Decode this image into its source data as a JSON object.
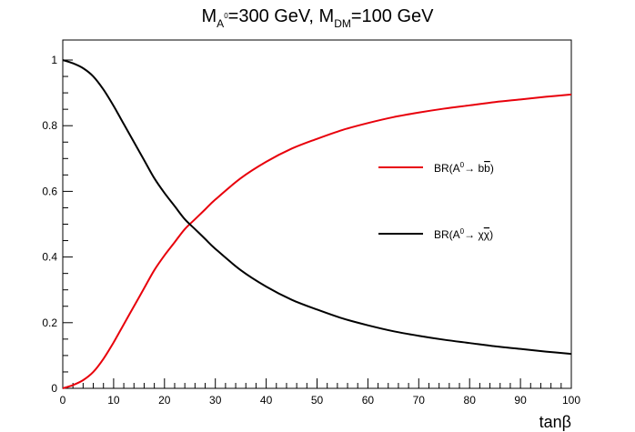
{
  "chart_data": {
    "type": "line",
    "title": {
      "m": "M",
      "a_sub": "A",
      "a_sup": "0",
      "mid": "=300 GeV, M",
      "dm_sub": "DM",
      "tail": "=100 GeV"
    },
    "xlabel": "tanβ",
    "ylabel": "",
    "xlim": [
      0,
      100
    ],
    "ylim": [
      0,
      1
    ],
    "x_ticks": [
      "0",
      "10",
      "20",
      "30",
      "40",
      "50",
      "60",
      "70",
      "80",
      "90",
      "100"
    ],
    "y_ticks": [
      "0",
      "0.2",
      "0.4",
      "0.6",
      "0.8",
      "1"
    ],
    "legend_placement": "right",
    "x": [
      0,
      2,
      4,
      6,
      8,
      10,
      12,
      14,
      16,
      18,
      20,
      22,
      24,
      26,
      28,
      30,
      35,
      40,
      45,
      50,
      55,
      60,
      65,
      70,
      75,
      80,
      85,
      90,
      95,
      100
    ],
    "series": [
      {
        "legend": {
          "pre": "BR(A",
          "sup": "0",
          "arrow": "→",
          "post": " b",
          "bar": "b",
          "close": ")"
        },
        "color": "#e8000b",
        "values": [
          0.0,
          0.01,
          0.025,
          0.05,
          0.09,
          0.14,
          0.195,
          0.25,
          0.305,
          0.36,
          0.405,
          0.445,
          0.485,
          0.515,
          0.545,
          0.575,
          0.64,
          0.69,
          0.73,
          0.76,
          0.787,
          0.808,
          0.826,
          0.84,
          0.852,
          0.862,
          0.872,
          0.88,
          0.888,
          0.895
        ]
      },
      {
        "legend": {
          "pre": "BR(A",
          "sup": "0",
          "arrow": "→",
          "post": " χ",
          "bar": "χ",
          "close": ")"
        },
        "color": "#000000",
        "values": [
          1.0,
          0.99,
          0.975,
          0.95,
          0.91,
          0.86,
          0.805,
          0.75,
          0.695,
          0.64,
          0.595,
          0.555,
          0.515,
          0.485,
          0.455,
          0.425,
          0.36,
          0.31,
          0.27,
          0.24,
          0.213,
          0.192,
          0.174,
          0.16,
          0.148,
          0.138,
          0.128,
          0.12,
          0.112,
          0.105
        ]
      }
    ]
  }
}
